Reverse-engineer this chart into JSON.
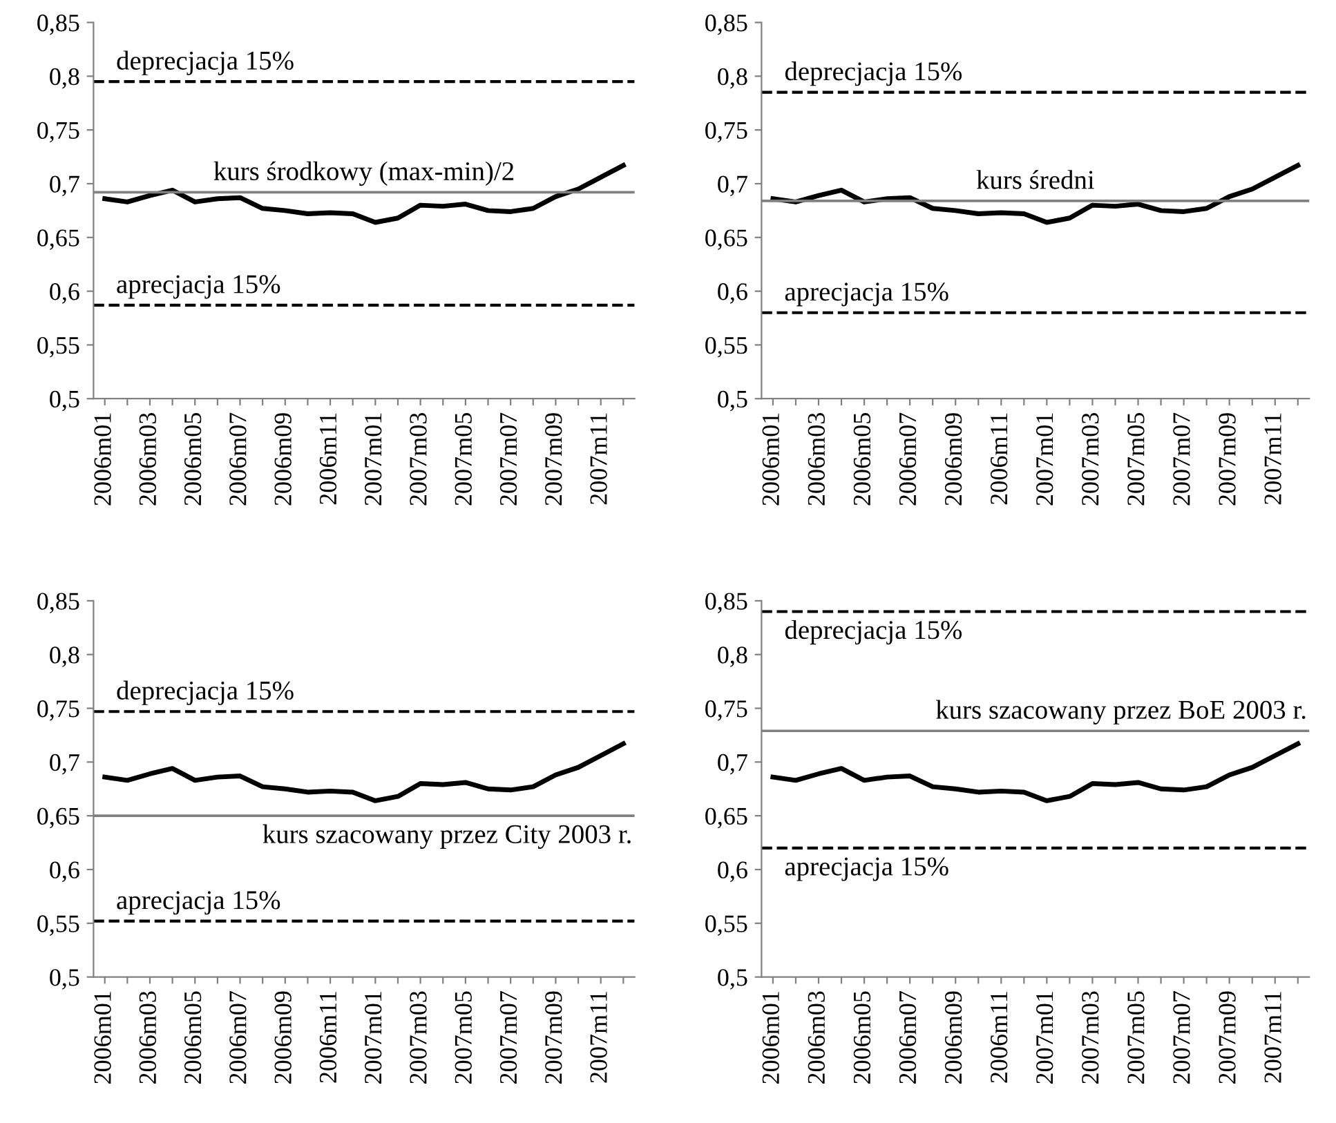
{
  "chart_data": [
    {
      "type": "line",
      "categories": [
        "2006m01",
        null,
        "2006m03",
        null,
        "2006m05",
        null,
        "2006m07",
        null,
        "2006m09",
        null,
        "2006m11",
        null,
        "2007m01",
        null,
        "2007m03",
        null,
        "2007m05",
        null,
        "2007m07",
        null,
        "2007m09",
        null,
        "2007m11",
        null
      ],
      "series": [
        {
          "color": "#000000",
          "values": [
            0.686,
            0.683,
            0.689,
            0.694,
            0.683,
            0.686,
            0.687,
            0.677,
            0.675,
            0.672,
            0.673,
            0.672,
            0.664,
            0.668,
            0.68,
            0.679,
            0.681,
            0.675,
            0.674,
            0.677,
            0.688,
            0.695,
            0.706,
            0.717
          ]
        }
      ],
      "ylim": [
        0.5,
        0.85
      ],
      "yticks": [
        {
          "value": 0.5,
          "label": "0,5"
        },
        {
          "value": 0.55,
          "label": "0,55"
        },
        {
          "value": 0.6,
          "label": "0,6"
        },
        {
          "value": 0.65,
          "label": "0,65"
        },
        {
          "value": 0.7,
          "label": "0,7"
        },
        {
          "value": 0.75,
          "label": "0,75"
        },
        {
          "value": 0.8,
          "label": "0,8"
        },
        {
          "value": 0.85,
          "label": "0,85"
        }
      ],
      "grid": false,
      "legend": false,
      "marker": "none",
      "line_style": "solid",
      "ref_lines": [
        {
          "axis": "y",
          "value": 0.795,
          "label": "deprecjacja 15%",
          "color": "#000000",
          "line_style": "dashed"
        },
        {
          "axis": "y",
          "value": 0.692,
          "label": "kurs środkowy (max-min)/2",
          "color": "#808080",
          "line_style": "solid"
        },
        {
          "axis": "y",
          "value": 0.587,
          "label": "aprecjacja 15%",
          "color": "#000000",
          "line_style": "dashed"
        }
      ]
    },
    {
      "type": "line",
      "categories": [
        "2006m01",
        null,
        "2006m03",
        null,
        "2006m05",
        null,
        "2006m07",
        null,
        "2006m09",
        null,
        "2006m11",
        null,
        "2007m01",
        null,
        "2007m03",
        null,
        "2007m05",
        null,
        "2007m07",
        null,
        "2007m09",
        null,
        "2007m11",
        null
      ],
      "series": [
        {
          "color": "#000000",
          "values": [
            0.686,
            0.683,
            0.689,
            0.694,
            0.683,
            0.686,
            0.687,
            0.677,
            0.675,
            0.672,
            0.673,
            0.672,
            0.664,
            0.668,
            0.68,
            0.679,
            0.681,
            0.675,
            0.674,
            0.677,
            0.688,
            0.695,
            0.706,
            0.717
          ]
        }
      ],
      "ylim": [
        0.5,
        0.85
      ],
      "yticks": [
        {
          "value": 0.5,
          "label": "0,5"
        },
        {
          "value": 0.55,
          "label": "0,55"
        },
        {
          "value": 0.6,
          "label": "0,6"
        },
        {
          "value": 0.65,
          "label": "0,65"
        },
        {
          "value": 0.7,
          "label": "0,7"
        },
        {
          "value": 0.75,
          "label": "0,75"
        },
        {
          "value": 0.8,
          "label": "0,8"
        },
        {
          "value": 0.85,
          "label": "0,85"
        }
      ],
      "grid": false,
      "legend": false,
      "marker": "none",
      "line_style": "solid",
      "ref_lines": [
        {
          "axis": "y",
          "value": 0.785,
          "label": "deprecjacja 15%",
          "color": "#000000",
          "line_style": "dashed"
        },
        {
          "axis": "y",
          "value": 0.684,
          "label": "kurs średni",
          "color": "#808080",
          "line_style": "solid"
        },
        {
          "axis": "y",
          "value": 0.58,
          "label": "aprecjacja 15%",
          "color": "#000000",
          "line_style": "dashed"
        }
      ]
    },
    {
      "type": "line",
      "categories": [
        "2006m01",
        null,
        "2006m03",
        null,
        "2006m05",
        null,
        "2006m07",
        null,
        "2006m09",
        null,
        "2006m11",
        null,
        "2007m01",
        null,
        "2007m03",
        null,
        "2007m05",
        null,
        "2007m07",
        null,
        "2007m09",
        null,
        "2007m11",
        null
      ],
      "series": [
        {
          "color": "#000000",
          "values": [
            0.686,
            0.683,
            0.689,
            0.694,
            0.683,
            0.686,
            0.687,
            0.677,
            0.675,
            0.672,
            0.673,
            0.672,
            0.664,
            0.668,
            0.68,
            0.679,
            0.681,
            0.675,
            0.674,
            0.677,
            0.688,
            0.695,
            0.706,
            0.717
          ]
        }
      ],
      "ylim": [
        0.5,
        0.85
      ],
      "yticks": [
        {
          "value": 0.5,
          "label": "0,5"
        },
        {
          "value": 0.55,
          "label": "0,55"
        },
        {
          "value": 0.6,
          "label": "0,6"
        },
        {
          "value": 0.65,
          "label": "0,65"
        },
        {
          "value": 0.7,
          "label": "0,7"
        },
        {
          "value": 0.75,
          "label": "0,75"
        },
        {
          "value": 0.8,
          "label": "0,8"
        },
        {
          "value": 0.85,
          "label": "0,85"
        }
      ],
      "grid": false,
      "legend": false,
      "marker": "none",
      "line_style": "solid",
      "ref_lines": [
        {
          "axis": "y",
          "value": 0.747,
          "label": "deprecjacja 15%",
          "color": "#000000",
          "line_style": "dashed"
        },
        {
          "axis": "y",
          "value": 0.65,
          "label": "kurs szacowany przez City 2003 r.",
          "color": "#808080",
          "line_style": "solid"
        },
        {
          "axis": "y",
          "value": 0.552,
          "label": "aprecjacja 15%",
          "color": "#000000",
          "line_style": "dashed"
        }
      ]
    },
    {
      "type": "line",
      "categories": [
        "2006m01",
        null,
        "2006m03",
        null,
        "2006m05",
        null,
        "2006m07",
        null,
        "2006m09",
        null,
        "2006m11",
        null,
        "2007m01",
        null,
        "2007m03",
        null,
        "2007m05",
        null,
        "2007m07",
        null,
        "2007m09",
        null,
        "2007m11",
        null
      ],
      "series": [
        {
          "color": "#000000",
          "values": [
            0.686,
            0.683,
            0.689,
            0.694,
            0.683,
            0.686,
            0.687,
            0.677,
            0.675,
            0.672,
            0.673,
            0.672,
            0.664,
            0.668,
            0.68,
            0.679,
            0.681,
            0.675,
            0.674,
            0.677,
            0.688,
            0.695,
            0.706,
            0.717
          ]
        }
      ],
      "ylim": [
        0.5,
        0.85
      ],
      "yticks": [
        {
          "value": 0.5,
          "label": "0,5"
        },
        {
          "value": 0.55,
          "label": "0,55"
        },
        {
          "value": 0.6,
          "label": "0,6"
        },
        {
          "value": 0.65,
          "label": "0,65"
        },
        {
          "value": 0.7,
          "label": "0,7"
        },
        {
          "value": 0.75,
          "label": "0,75"
        },
        {
          "value": 0.8,
          "label": "0,8"
        },
        {
          "value": 0.85,
          "label": "0,85"
        }
      ],
      "grid": false,
      "legend": false,
      "marker": "none",
      "line_style": "solid",
      "ref_lines": [
        {
          "axis": "y",
          "value": 0.84,
          "label": "deprecjacja 15%",
          "color": "#000000",
          "line_style": "dashed"
        },
        {
          "axis": "y",
          "value": 0.729,
          "label": "kurs szacowany przez BoE 2003 r.",
          "color": "#808080",
          "line_style": "solid"
        },
        {
          "axis": "y",
          "value": 0.62,
          "label": "aprecjacja 15%",
          "color": "#000000",
          "line_style": "dashed"
        }
      ]
    }
  ]
}
